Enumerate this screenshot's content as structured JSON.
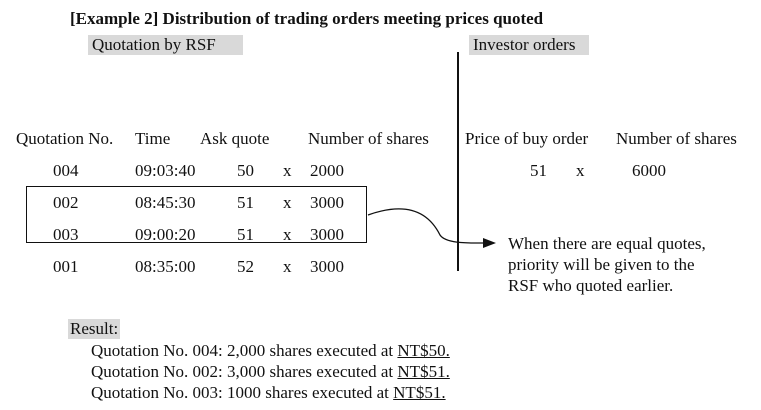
{
  "title": "[Example 2] Distribution of trading orders meeting prices quoted",
  "sections": {
    "rsf": "Quotation by RSF",
    "investor": "Investor orders"
  },
  "headers": {
    "quotation_no": "Quotation No.",
    "time": "Time",
    "ask_quote": "Ask quote",
    "number_of_shares": "Number of shares",
    "price_of_buy_order": "Price of buy order",
    "investor_number_of_shares": "Number of shares"
  },
  "rows": [
    {
      "no": "004",
      "time": "09:03:40",
      "ask": "50",
      "x": "x",
      "shares": "2000"
    },
    {
      "no": "002",
      "time": "08:45:30",
      "ask": "51",
      "x": "x",
      "shares": "3000"
    },
    {
      "no": "003",
      "time": "09:00:20",
      "ask": "51",
      "x": "x",
      "shares": "3000"
    },
    {
      "no": "001",
      "time": "08:35:00",
      "ask": "52",
      "x": "x",
      "shares": "3000"
    }
  ],
  "investor_order": {
    "price": "51",
    "x": "x",
    "shares": "6000"
  },
  "note": [
    "When there are equal quotes,",
    "priority will be given to the",
    "RSF who quoted earlier."
  ],
  "result": {
    "label": "Result:",
    "lines": [
      {
        "text": "Quotation No. 004: 2,000 shares executed at ",
        "price": "NT$50."
      },
      {
        "text": "Quotation No. 002: 3,000 shares executed at ",
        "price": "NT$51."
      },
      {
        "text": "Quotation No. 003: 1000 shares executed at ",
        "price": "NT$51."
      }
    ]
  }
}
